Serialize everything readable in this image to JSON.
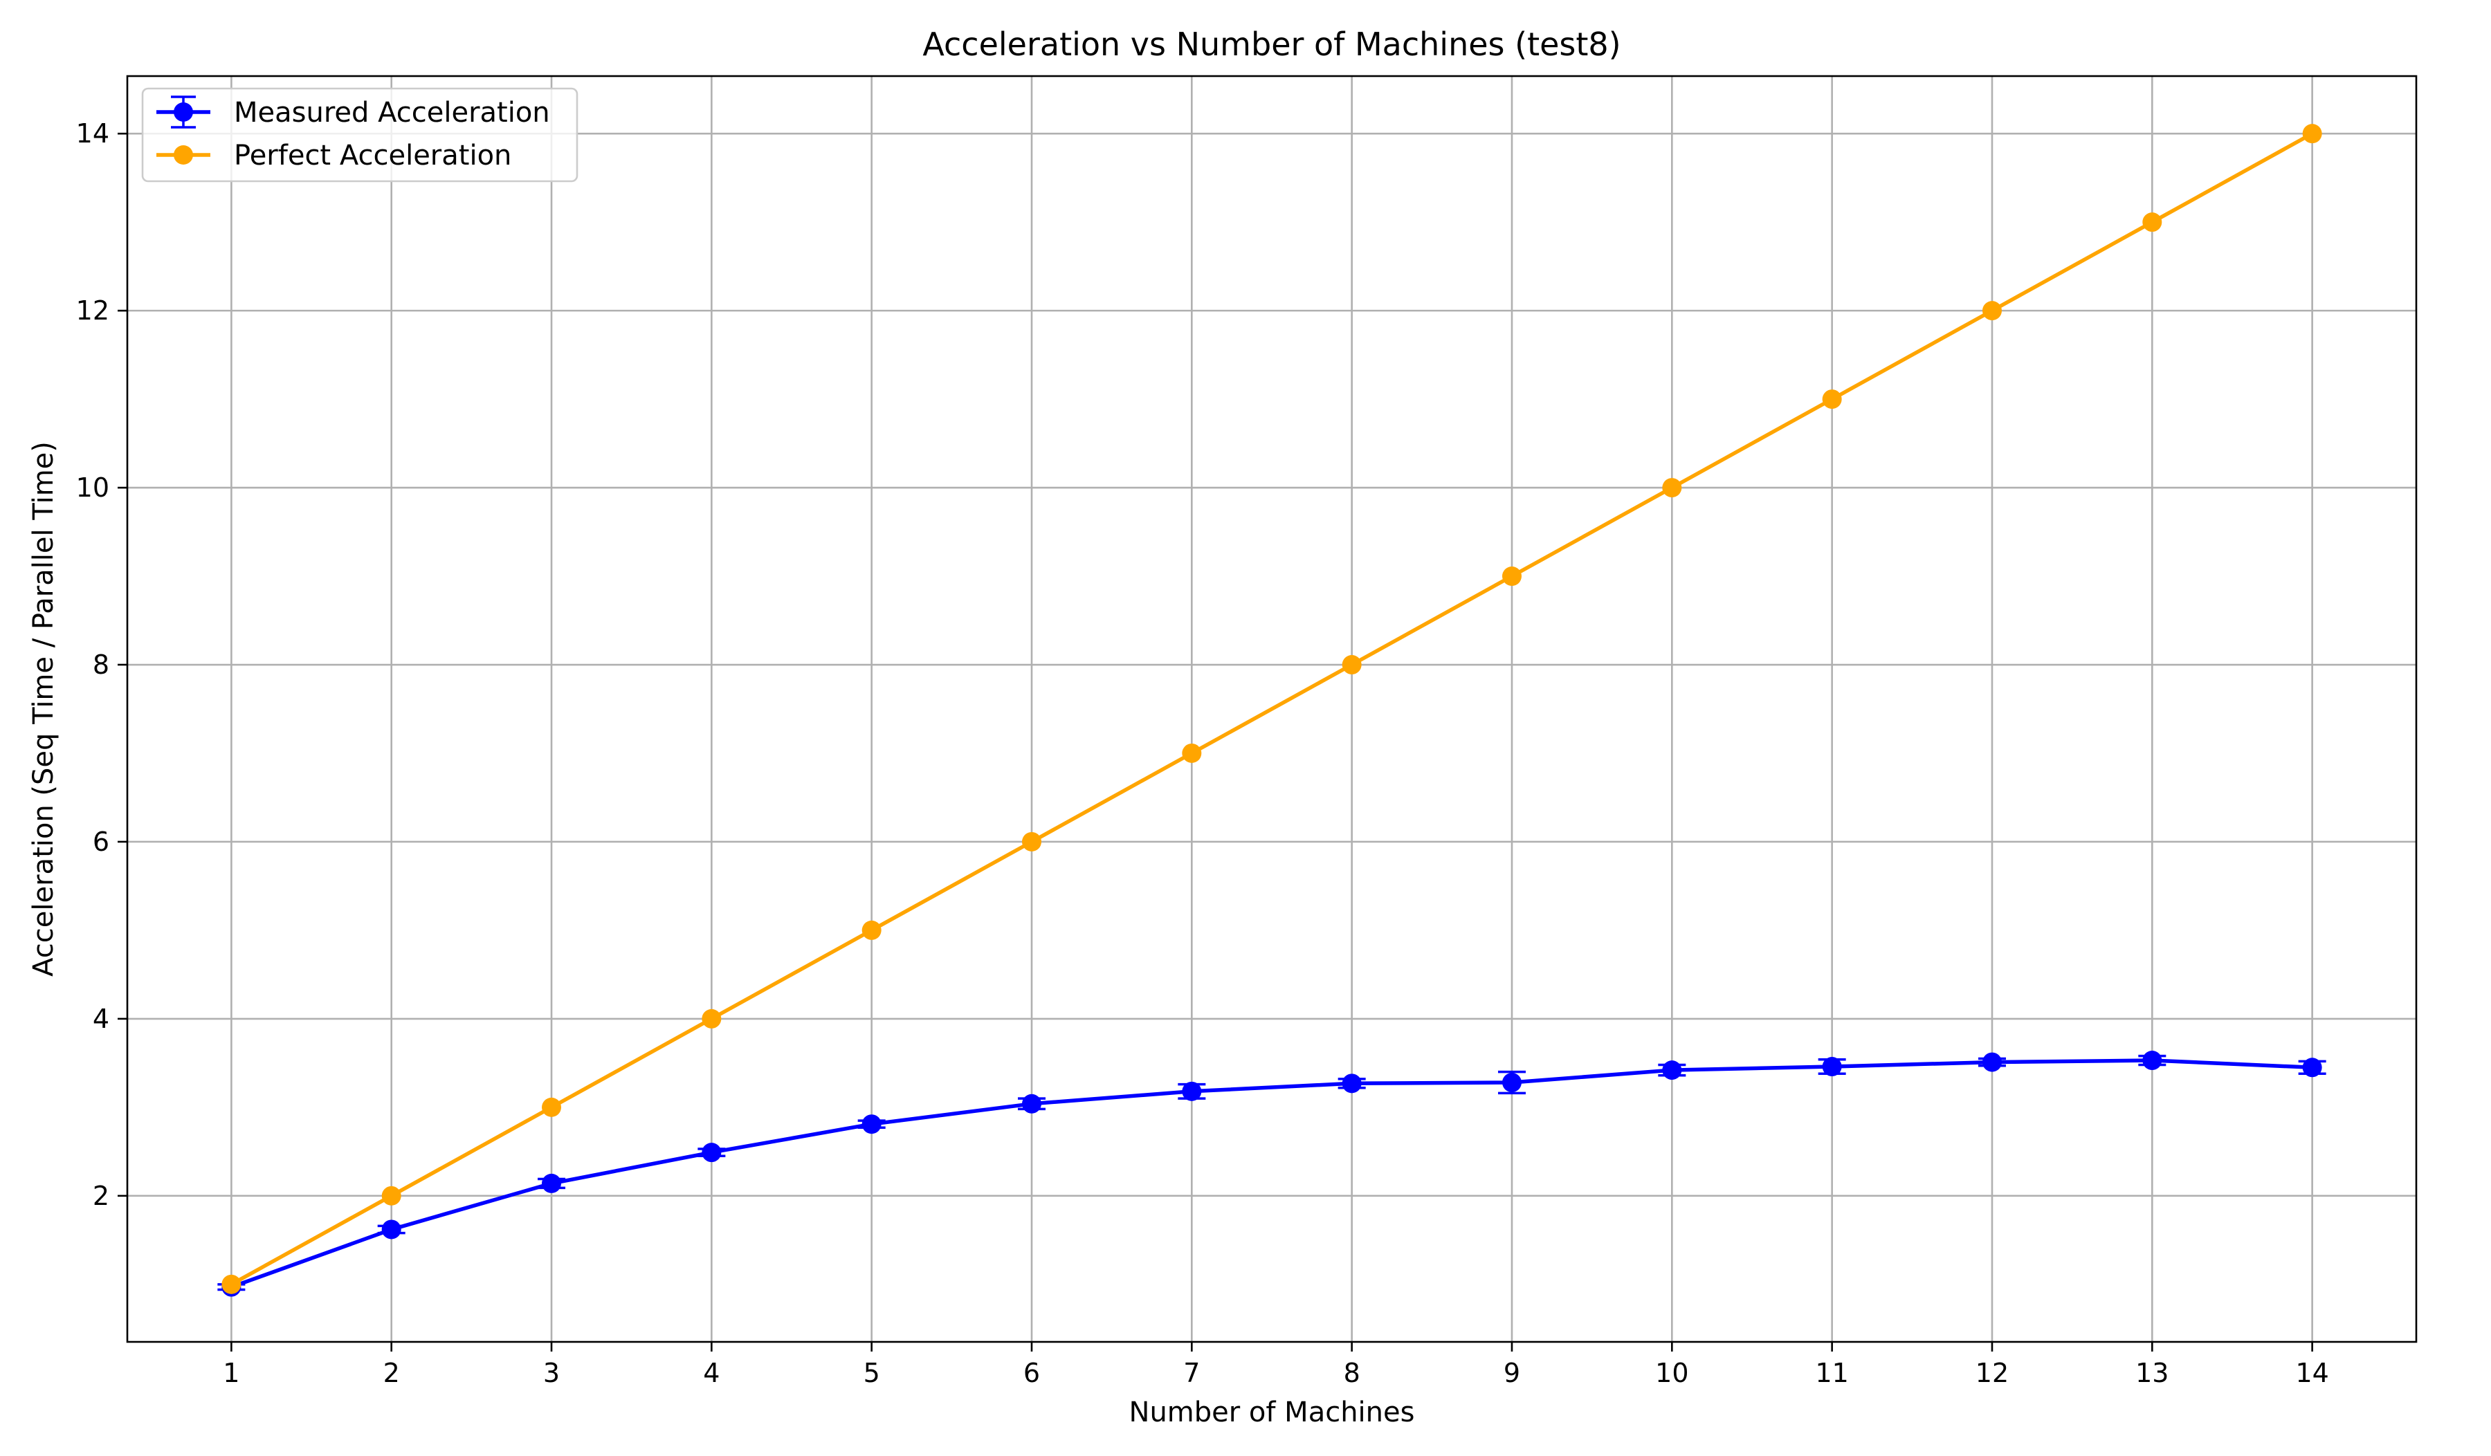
{
  "chart_data": {
    "type": "line",
    "title": "Acceleration vs Number of Machines (test8)",
    "xlabel": "Number of Machines",
    "ylabel": "Acceleration (Seq Time / Parallel Time)",
    "x": [
      1,
      2,
      3,
      4,
      5,
      6,
      7,
      8,
      9,
      10,
      11,
      12,
      13,
      14
    ],
    "xlim": [
      0.35,
      14.65
    ],
    "ylim": [
      0.35,
      14.65
    ],
    "xticks": [
      1,
      2,
      3,
      4,
      5,
      6,
      7,
      8,
      9,
      10,
      11,
      12,
      13,
      14
    ],
    "yticks": [
      2,
      4,
      6,
      8,
      10,
      12,
      14
    ],
    "grid": true,
    "legend_position": "top-left",
    "series": [
      {
        "name": "Measured Acceleration",
        "color": "#0000ff",
        "marker": "circle",
        "error_bars": true,
        "values": [
          0.97,
          1.62,
          2.14,
          2.49,
          2.81,
          3.04,
          3.18,
          3.27,
          3.28,
          3.42,
          3.46,
          3.51,
          3.53,
          3.45
        ],
        "errors": [
          0.03,
          0.04,
          0.05,
          0.04,
          0.04,
          0.06,
          0.08,
          0.05,
          0.12,
          0.06,
          0.08,
          0.04,
          0.05,
          0.07
        ]
      },
      {
        "name": "Perfect Acceleration",
        "color": "#ffa500",
        "marker": "circle",
        "error_bars": false,
        "values": [
          1,
          2,
          3,
          4,
          5,
          6,
          7,
          8,
          9,
          10,
          11,
          12,
          13,
          14
        ]
      }
    ]
  }
}
